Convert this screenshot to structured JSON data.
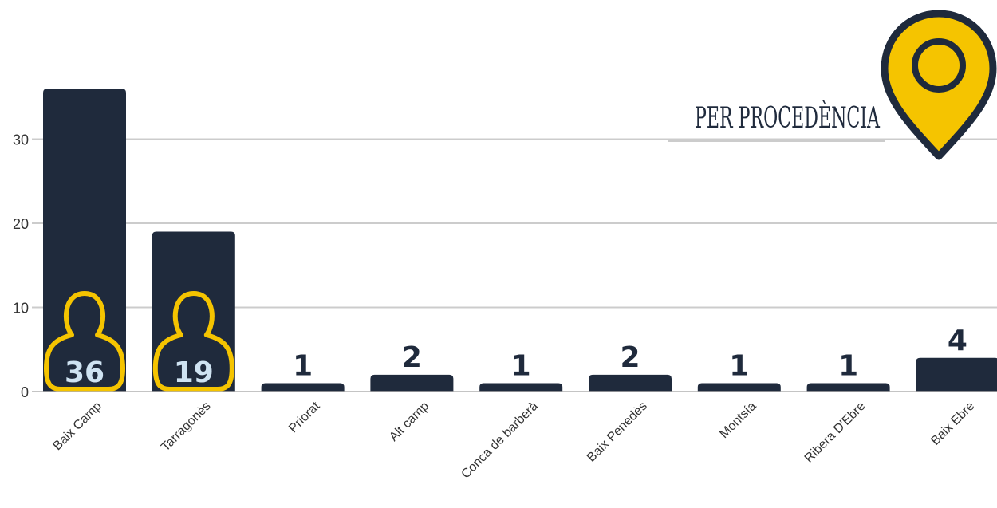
{
  "chart_data": {
    "type": "bar",
    "title": "PER PROCEDÈNCIA",
    "categories": [
      "Baix Camp",
      "Tarragonès",
      "Priorat",
      "Alt camp",
      "Conca de barberà",
      "Baix Penedès",
      "Montsía",
      "Ribera D'Ebre",
      "Baix Ebre"
    ],
    "values": [
      36,
      19,
      1,
      2,
      1,
      2,
      1,
      1,
      4
    ],
    "ylim": [
      0,
      36
    ],
    "yticks": [
      "0",
      "10",
      "20",
      "30"
    ],
    "xlabel": "",
    "ylabel": "",
    "grid": true,
    "legend": "none",
    "colors": {
      "bar": "#1f2a3c",
      "accent": "#f5c400",
      "grid": "#cccccc",
      "inner_label": "#cfe3f2"
    }
  },
  "icons": {
    "person": "person-icon",
    "pin": "map-pin-icon"
  }
}
